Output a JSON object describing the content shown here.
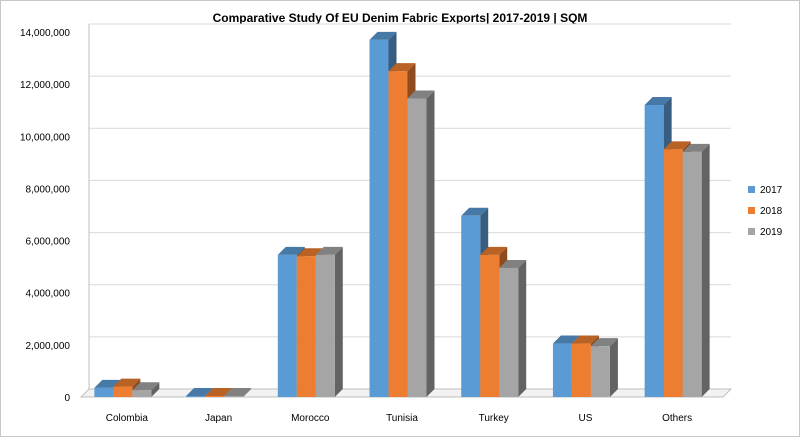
{
  "chart_data": {
    "type": "bar",
    "title": "Comparative Study Of EU Denim Fabric Exports| 2017-2019  | SQM",
    "xlabel": "",
    "ylabel": "",
    "categories": [
      "Colombia",
      "Japan",
      "Morocco",
      "Tunisia",
      "Turkey",
      "US",
      "Others"
    ],
    "series": [
      {
        "name": "2017",
        "values": [
          350000,
          40000,
          5450000,
          13700000,
          6950000,
          2050000,
          11200000
        ]
      },
      {
        "name": "2018",
        "values": [
          400000,
          40000,
          5400000,
          12500000,
          5450000,
          2050000,
          9500000
        ]
      },
      {
        "name": "2019",
        "values": [
          260000,
          40000,
          5450000,
          11450000,
          4950000,
          1950000,
          9400000
        ]
      }
    ],
    "ylim": [
      0,
      14000000
    ],
    "yticks": [
      "0",
      "2,000,000",
      "4,000,000",
      "6,000,000",
      "8,000,000",
      "10,000,000",
      "12,000,000",
      "14,000,000"
    ],
    "ytick_values": [
      0,
      2000000,
      4000000,
      6000000,
      8000000,
      10000000,
      12000000,
      14000000
    ],
    "grid": true,
    "legend_position": "right",
    "colors": {
      "2017": "#5b9bd5",
      "2018": "#ed7d31",
      "2019": "#a5a5a5"
    }
  }
}
